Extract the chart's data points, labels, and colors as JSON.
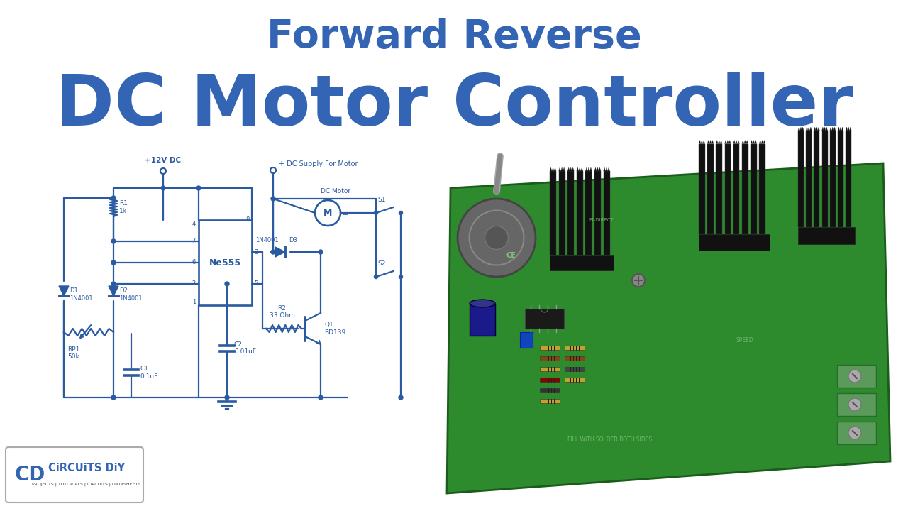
{
  "title_line1": "Forward Reverse",
  "title_line2": "DC Motor Controller",
  "title_color": "#3464b4",
  "bg_color": "#ffffff",
  "circuit_color": "#2a5aa0",
  "title1_fontsize": 40,
  "title2_fontsize": 72,
  "logo_text": "CiRCUiTS DiY",
  "logo_sub": "PROJECTS | TUTORIALS | CIRCUITS | DATASHEETS",
  "logo_color": "#3464b4"
}
